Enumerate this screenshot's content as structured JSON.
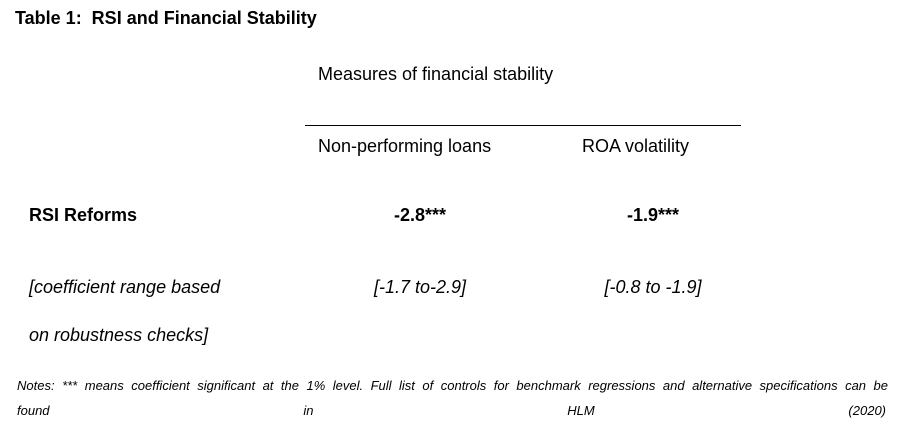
{
  "title": "Table 1:  RSI and Financial Stability",
  "table": {
    "spanning_header": "Measures of financial stability",
    "columns": [
      "Non-performing loans",
      "ROA volatility"
    ],
    "rows": [
      {
        "label": "RSI Reforms",
        "values": [
          "-2.8***",
          "-1.9***"
        ]
      },
      {
        "label_line1": "[coefficient range based",
        "label_line2": "on robustness checks]",
        "values": [
          "[-1.7 to-2.9]",
          "[-0.8 to -1.9]"
        ]
      }
    ]
  },
  "notes": {
    "line1": "Notes: *** means coefficient significant at the 1% level. Full list of controls for benchmark regressions and alternative specifications can be",
    "line2": "found in HLM (2020)"
  }
}
